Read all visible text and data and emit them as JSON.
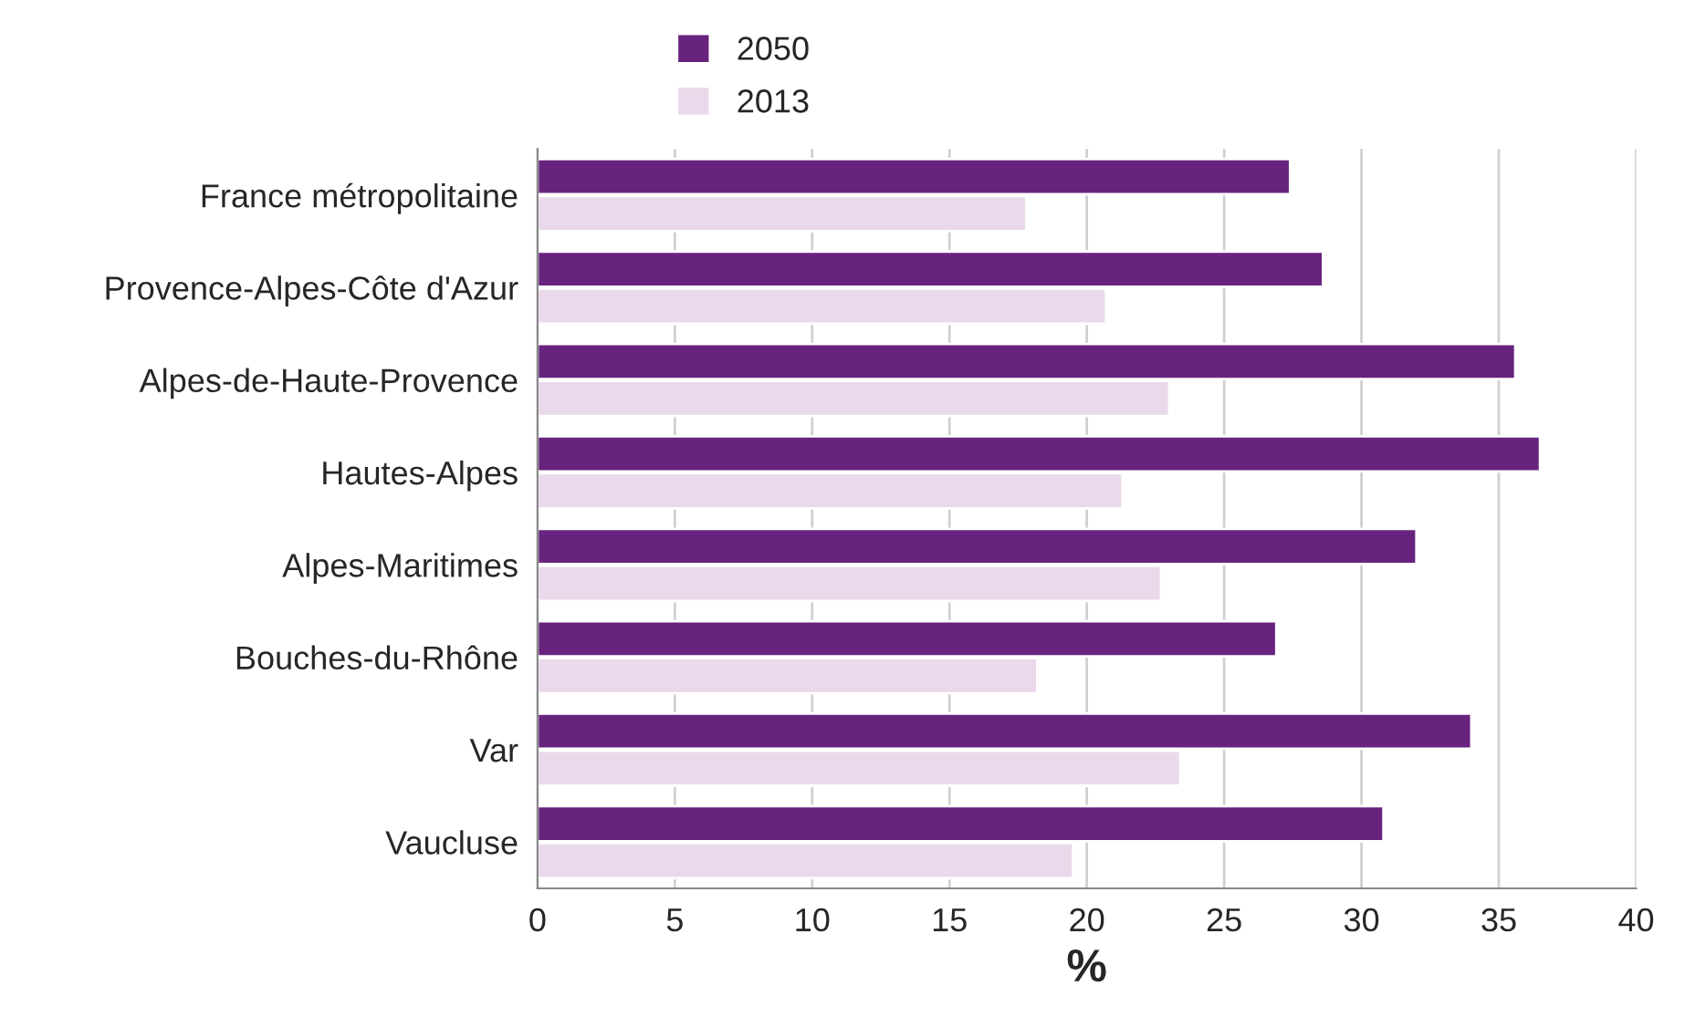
{
  "chart_data": {
    "type": "bar",
    "orientation": "horizontal",
    "xlabel": "%",
    "categories": [
      "France métropolitaine",
      "Provence-Alpes-Côte d'Azur",
      "Alpes-de-Haute-Provence",
      "Hautes-Alpes",
      "Alpes-Maritimes",
      "Bouches-du-Rhône",
      "Var",
      "Vaucluse"
    ],
    "series": [
      {
        "name": "2050",
        "color": "#68237f",
        "values": [
          27.4,
          28.6,
          35.6,
          36.5,
          32.0,
          26.9,
          34.0,
          30.8
        ]
      },
      {
        "name": "2013",
        "color": "#ead9ea",
        "values": [
          17.8,
          20.7,
          23.0,
          21.3,
          22.7,
          18.2,
          23.4,
          19.5
        ]
      }
    ],
    "xlim": [
      0,
      40
    ],
    "xticks": [
      0,
      5,
      10,
      15,
      20,
      25,
      30,
      35,
      40
    ],
    "grid": "x",
    "legend": "top left"
  }
}
